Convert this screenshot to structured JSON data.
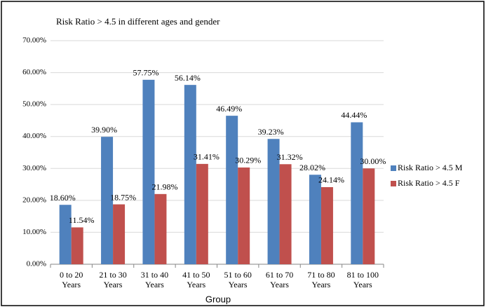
{
  "chart_data": {
    "type": "bar",
    "title": "Risk Ratio > 4.5 in different ages and gender",
    "x_label": "Group",
    "categories": [
      "0  to 20 Years",
      "21  to 30 Years",
      "31  to 40 Years",
      "41  to 50 Years",
      "51  to 60 Years",
      "61  to 70 Years",
      "71  to 80 Years",
      "81  to 100 Years"
    ],
    "series": [
      {
        "name": "Risk Ratio > 4.5 M",
        "color": "#4f81bd",
        "values": [
          18.6,
          39.9,
          57.75,
          56.14,
          46.49,
          39.23,
          28.02,
          44.44
        ],
        "value_labels": [
          "18.60%",
          "39.90%",
          "57.75%",
          "56.14%",
          "46.49%",
          "39.23%",
          "28.02%",
          "44.44%"
        ]
      },
      {
        "name": "Risk Ratio > 4.5 F",
        "color": "#c0504d",
        "values": [
          11.54,
          18.75,
          21.98,
          31.41,
          30.29,
          31.32,
          24.14,
          30.0
        ],
        "value_labels": [
          "11.54%",
          "18.75%",
          "21.98%",
          "31.41%",
          "30.29%",
          "31.32%",
          "24.14%",
          "30.00%"
        ]
      }
    ],
    "ylim": [
      0,
      70
    ],
    "yticks": [
      {
        "value": 0,
        "label": "0.00%"
      },
      {
        "value": 10,
        "label": "10.00%"
      },
      {
        "value": 20,
        "label": "20.00%"
      },
      {
        "value": 30,
        "label": "30.00%"
      },
      {
        "value": 40,
        "label": "40.00%"
      },
      {
        "value": 50,
        "label": "50.00%"
      },
      {
        "value": 60,
        "label": "60.00%"
      },
      {
        "value": 70,
        "label": "70.00%"
      }
    ],
    "grid": true,
    "legend": "right"
  }
}
